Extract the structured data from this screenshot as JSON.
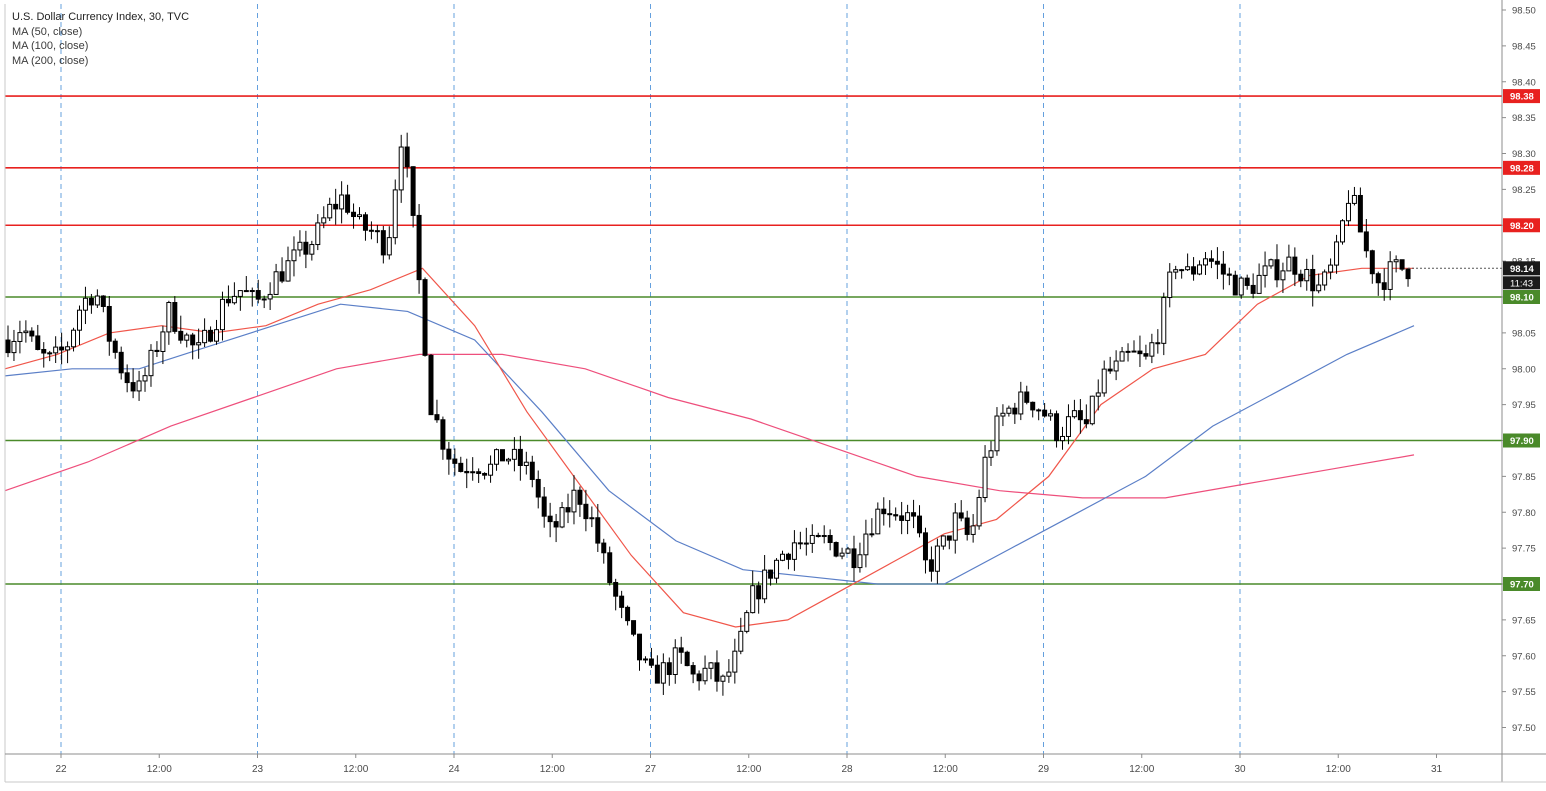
{
  "legend": {
    "title": "U.S. Dollar Currency Index, 30, TVC",
    "ma_lines": [
      "MA (50, close)",
      "MA (100, close)",
      "MA (200, close)"
    ]
  },
  "colors": {
    "candle": "#000000",
    "grid": "#4a90d9",
    "resistance": "#e8211f",
    "support": "#4a8a2a",
    "ma50": "#f0564a",
    "ma100": "#5b7fc7",
    "ma200": "#ee4f7c",
    "last_price_bg": "#1a1a1a",
    "axis_text": "#4a4a4a"
  },
  "chart_data": {
    "type": "candlestick",
    "title": "U.S. Dollar Currency Index, 30, TVC",
    "timeframe": "30",
    "x_tick_labels": [
      "22",
      "12:00",
      "23",
      "12:00",
      "24",
      "12:00",
      "27",
      "12:00",
      "28",
      "12:00",
      "29",
      "12:00",
      "30",
      "12:00",
      "31"
    ],
    "y_tick_labels": [
      "98.50",
      "98.45",
      "98.40",
      "98.35",
      "98.30",
      "98.25",
      "98.20",
      "98.15",
      "98.10",
      "98.05",
      "98.00",
      "97.95",
      "97.90",
      "97.85",
      "97.80",
      "97.75",
      "97.70",
      "97.65",
      "97.60",
      "97.55",
      "97.50"
    ],
    "ylim": [
      97.46,
      98.51
    ],
    "grid": "vertical dashed at day boundaries",
    "resistance_levels": [
      {
        "value": 98.38,
        "label": "98.38"
      },
      {
        "value": 98.28,
        "label": "98.28"
      },
      {
        "value": 98.2,
        "label": "98.20"
      }
    ],
    "support_levels": [
      {
        "value": 98.1,
        "label": "98.10"
      },
      {
        "value": 97.9,
        "label": "97.90"
      },
      {
        "value": 97.7,
        "label": "97.70"
      }
    ],
    "last_price": {
      "value": 98.14,
      "label": "98.14",
      "countdown": "11:43"
    },
    "price_path": [
      98.04,
      98.06,
      98.02,
      98.01,
      98.03,
      98.09,
      98.11,
      98.04,
      97.99,
      97.97,
      98.02,
      98.08,
      98.05,
      98.02,
      98.06,
      98.1,
      98.11,
      98.09,
      98.12,
      98.14,
      98.16,
      98.18,
      98.22,
      98.24,
      98.2,
      98.19,
      98.17,
      98.33,
      98.16,
      97.95,
      97.89,
      97.86,
      97.87,
      97.86,
      97.88,
      97.87,
      97.85,
      97.77,
      97.79,
      97.83,
      97.79,
      97.72,
      97.66,
      97.61,
      97.57,
      97.58,
      97.6,
      97.57,
      97.58,
      97.56,
      97.6,
      97.68,
      97.71,
      97.74,
      97.76,
      97.75,
      97.76,
      97.75,
      97.74,
      97.78,
      97.81,
      97.8,
      97.79,
      97.72,
      97.75,
      97.79,
      97.76,
      97.87,
      97.93,
      97.95,
      97.96,
      97.94,
      97.91,
      97.93,
      97.92,
      97.99,
      98.0,
      98.02,
      98.01,
      98.06,
      98.15,
      98.13,
      98.16,
      98.14,
      98.12,
      98.11,
      98.13,
      98.14,
      98.15,
      98.13,
      98.11,
      98.15,
      98.25,
      98.17,
      98.12,
      98.14,
      98.14
    ],
    "ma50": [
      98.0,
      98.02,
      98.05,
      98.06,
      98.05,
      98.06,
      98.09,
      98.11,
      98.14,
      98.06,
      97.94,
      97.84,
      97.74,
      97.66,
      97.64,
      97.65,
      97.69,
      97.73,
      97.77,
      97.79,
      97.85,
      97.95,
      98.0,
      98.02,
      98.09,
      98.13,
      98.14,
      98.14
    ],
    "ma100": [
      97.99,
      98.0,
      98.0,
      98.03,
      98.06,
      98.09,
      98.08,
      98.04,
      97.94,
      97.83,
      97.76,
      97.72,
      97.71,
      97.7,
      97.7,
      97.75,
      97.8,
      97.85,
      97.92,
      97.97,
      98.02,
      98.06
    ],
    "ma200": [
      97.83,
      97.87,
      97.92,
      97.96,
      98.0,
      98.02,
      98.02,
      98.0,
      97.96,
      97.93,
      97.89,
      97.85,
      97.83,
      97.82,
      97.82,
      97.84,
      97.86,
      97.88
    ]
  }
}
